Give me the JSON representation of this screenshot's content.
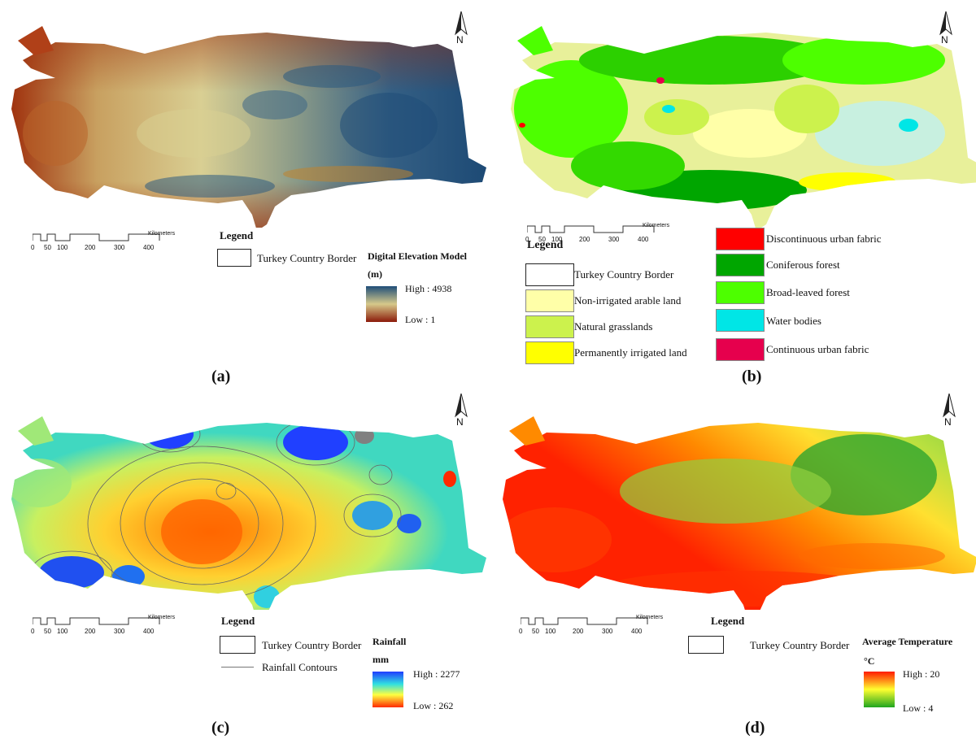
{
  "figure": {
    "north_letter": "N",
    "scale": {
      "ticks": [
        "0",
        "50",
        "100",
        "200",
        "300",
        "400"
      ],
      "unit": "Kilometers"
    }
  },
  "panels": {
    "a": {
      "label": "(a)",
      "legend_title": "Legend",
      "border_label": "Turkey Country Border",
      "ramp_title": "Digital Elevation Model",
      "ramp_unit": "(m)",
      "ramp_high": "High : 4938",
      "ramp_low": "Low : 1",
      "colors": {
        "high": "#1f4e79",
        "mid": "#d6c98a",
        "low": "#8b1a0a"
      }
    },
    "b": {
      "label": "(b)",
      "legend_title": "Legend",
      "classes_left": [
        {
          "label": "Turkey Country Border",
          "color": "#ffffff"
        },
        {
          "label": "Non-irrigated arable land",
          "color": "#ffffa8"
        },
        {
          "label": "Natural grasslands",
          "color": "#ccf24d"
        },
        {
          "label": "Permanently irrigated land",
          "color": "#ffff00"
        }
      ],
      "classes_right": [
        {
          "label": "Discontinuous urban fabric",
          "color": "#ff0000"
        },
        {
          "label": "Coniferous forest",
          "color": "#00a600"
        },
        {
          "label": "Broad-leaved forest",
          "color": "#4dff00"
        },
        {
          "label": "Water bodies",
          "color": "#00e6e6"
        },
        {
          "label": "Continuous urban fabric",
          "color": "#e6004d"
        }
      ]
    },
    "c": {
      "label": "(c)",
      "legend_title": "Legend",
      "border_label": "Turkey Country Border",
      "contour_label": "Rainfall Contours",
      "ramp_title": "Rainfall",
      "ramp_unit": "mm",
      "ramp_high": "High : 2277",
      "ramp_low": "Low : 262",
      "colors": {
        "high": "#1f3cff",
        "mid": "#ffff40",
        "low": "#ff2a00"
      }
    },
    "d": {
      "label": "(d)",
      "legend_title": "Legend",
      "border_label": "Turkey Country Border",
      "ramp_title": "Average Temperature",
      "ramp_unit": "°C",
      "ramp_high": "High : 20",
      "ramp_low": "Low : 4",
      "colors": {
        "high": "#ff1a00",
        "mid": "#ffff30",
        "low": "#1fa51f"
      }
    }
  }
}
